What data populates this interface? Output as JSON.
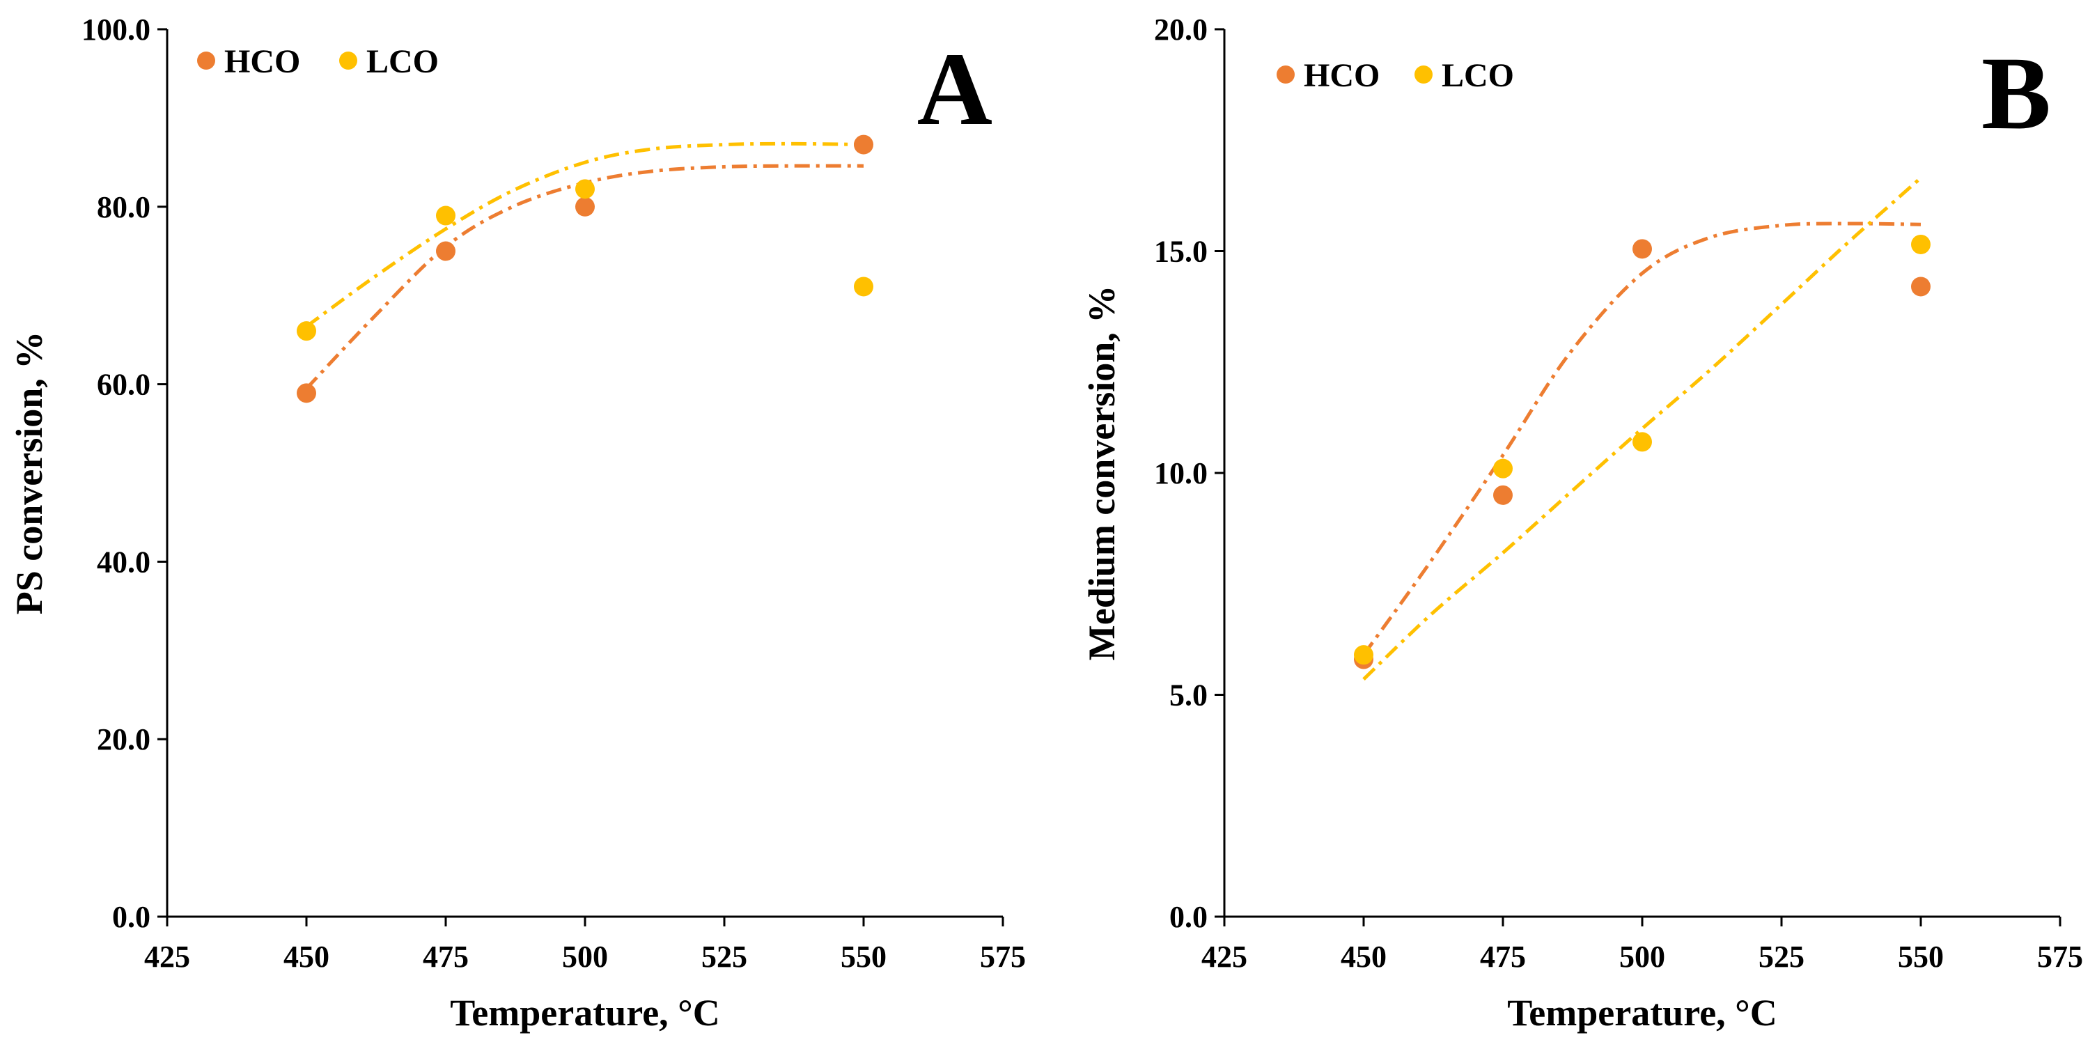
{
  "colors": {
    "HCO": "#ED7D31",
    "LCO": "#FFC000"
  },
  "chart_data": [
    {
      "type": "scatter",
      "panel_label": "A",
      "xlabel": "Temperature, °C",
      "ylabel": "PS conversion, %",
      "xlim": [
        425,
        575
      ],
      "ylim": [
        0,
        100
      ],
      "x_ticks": [
        "425",
        "450",
        "475",
        "500",
        "525",
        "550",
        "575"
      ],
      "y_ticks": [
        "0.0",
        "20.0",
        "40.0",
        "60.0",
        "80.0",
        "100.0"
      ],
      "legend_position": "top-left",
      "series": [
        {
          "name": "HCO",
          "color": "#ED7D31",
          "points": [
            [
              450,
              59
            ],
            [
              475,
              75
            ],
            [
              500,
              80
            ],
            [
              550,
              87
            ]
          ],
          "trend": [
            [
              450,
              59.5
            ],
            [
              462,
              67.5
            ],
            [
              475,
              75.5
            ],
            [
              487,
              80
            ],
            [
              500,
              82.7
            ],
            [
              512,
              84
            ],
            [
              525,
              84.5
            ],
            [
              537,
              84.6
            ],
            [
              550,
              84.6
            ]
          ]
        },
        {
          "name": "LCO",
          "color": "#FFC000",
          "points": [
            [
              450,
              66
            ],
            [
              475,
              79
            ],
            [
              500,
              82
            ],
            [
              550,
              71
            ]
          ],
          "trend": [
            [
              450,
              66.5
            ],
            [
              462,
              72
            ],
            [
              475,
              77.5
            ],
            [
              487,
              81.8
            ],
            [
              500,
              85
            ],
            [
              512,
              86.5
            ],
            [
              525,
              87
            ],
            [
              537,
              87.1
            ],
            [
              550,
              87
            ]
          ]
        }
      ]
    },
    {
      "type": "scatter",
      "panel_label": "B",
      "xlabel": "Temperature, °C",
      "ylabel": "Medium conversion, %",
      "xlim": [
        425,
        575
      ],
      "ylim": [
        0,
        20
      ],
      "x_ticks": [
        "425",
        "450",
        "475",
        "500",
        "525",
        "550",
        "575"
      ],
      "y_ticks": [
        "0.0",
        "5.0",
        "10.0",
        "15.0",
        "20.0"
      ],
      "legend_position": "top-left",
      "series": [
        {
          "name": "HCO",
          "color": "#ED7D31",
          "points": [
            [
              450,
              5.8
            ],
            [
              475,
              9.5
            ],
            [
              500,
              15.05
            ],
            [
              550,
              14.2
            ]
          ],
          "trend": [
            [
              450,
              5.9
            ],
            [
              462,
              8.0
            ],
            [
              475,
              10.4
            ],
            [
              487,
              12.7
            ],
            [
              500,
              14.5
            ],
            [
              512,
              15.3
            ],
            [
              525,
              15.58
            ],
            [
              537,
              15.62
            ],
            [
              550,
              15.6
            ]
          ]
        },
        {
          "name": "LCO",
          "color": "#FFC000",
          "points": [
            [
              450,
              5.9
            ],
            [
              475,
              10.1
            ],
            [
              500,
              10.7
            ],
            [
              550,
              15.15
            ]
          ],
          "trend": [
            [
              450,
              5.35
            ],
            [
              462,
              6.8
            ],
            [
              475,
              8.2
            ],
            [
              487,
              9.55
            ],
            [
              500,
              11.0
            ],
            [
              512,
              12.3
            ],
            [
              525,
              13.8
            ],
            [
              537,
              15.2
            ],
            [
              550,
              16.65
            ]
          ]
        }
      ]
    }
  ]
}
